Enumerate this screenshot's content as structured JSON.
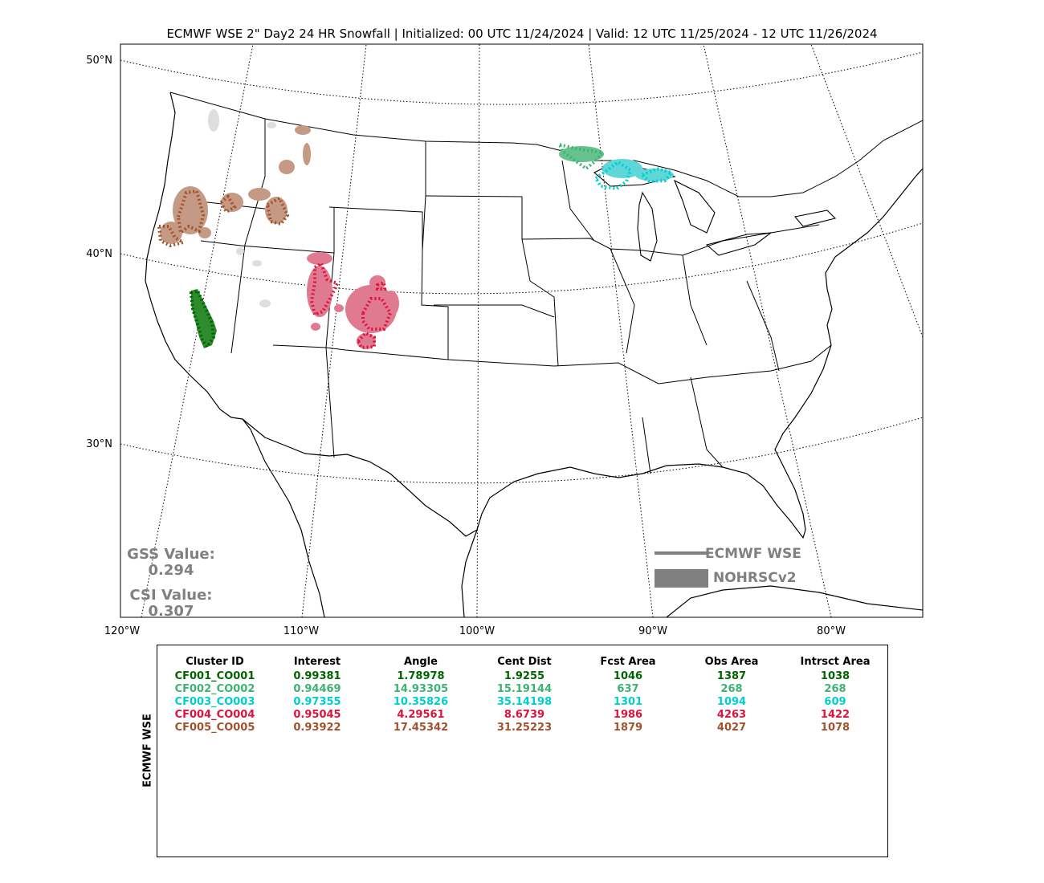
{
  "title": "ECMWF WSE 2\" Day2 24 HR Snowfall | Initialized: 00 UTC 11/24/2024 | Valid: 12 UTC 11/25/2024 - 12 UTC 11/26/2024",
  "lat_labels": [
    "50°N",
    "40°N",
    "30°N"
  ],
  "lon_labels": [
    "120°W",
    "110°W",
    "100°W",
    "90°W",
    "80°W"
  ],
  "stats": {
    "gss_label": "GSS Value:",
    "gss_value": "0.294",
    "csi_label": "CSI Value:",
    "csi_value": "0.307"
  },
  "legend": {
    "forecast_label": "ECMWF WSE",
    "observed_label": "NOHRSCv2",
    "color": "#808080"
  },
  "table": {
    "side_label": "ECMWF WSE",
    "headers": [
      "Cluster ID",
      "Interest",
      "Angle",
      "Cent Dist",
      "Fcst Area",
      "Obs Area",
      "Intrsct Area"
    ],
    "rows": [
      {
        "color": "#006400",
        "cells": [
          "CF001_CO001",
          "0.99381",
          "1.78978",
          "1.9255",
          "1046",
          "1387",
          "1038"
        ]
      },
      {
        "color": "#3cb371",
        "cells": [
          "CF002_CO002",
          "0.94469",
          "14.93305",
          "15.19144",
          "637",
          "268",
          "268"
        ]
      },
      {
        "color": "#00ced1",
        "cells": [
          "CF003_CO003",
          "0.97355",
          "10.35826",
          "35.14198",
          "1301",
          "1094",
          "609"
        ]
      },
      {
        "color": "#dc143c",
        "cells": [
          "CF004_CO004",
          "0.95045",
          "4.29561",
          "8.6739",
          "1986",
          "4263",
          "1422"
        ]
      },
      {
        "color": "#a0522d",
        "cells": [
          "CF005_CO005",
          "0.93922",
          "17.45342",
          "31.25223",
          "1879",
          "4027",
          "1078"
        ]
      }
    ]
  },
  "clusters": {
    "cf001": {
      "fill": "#2e8b2e",
      "outline": "#006400"
    },
    "cf002": {
      "fill": "#66c28e",
      "outline": "#3cb371"
    },
    "cf003": {
      "fill": "#5fd7d9",
      "outline": "#00ced1"
    },
    "cf004": {
      "fill": "#e07a90",
      "outline": "#dc143c"
    },
    "cf005": {
      "fill": "#c49a84",
      "outline": "#a0522d"
    },
    "unmatched": {
      "fill": "#dedede"
    }
  }
}
